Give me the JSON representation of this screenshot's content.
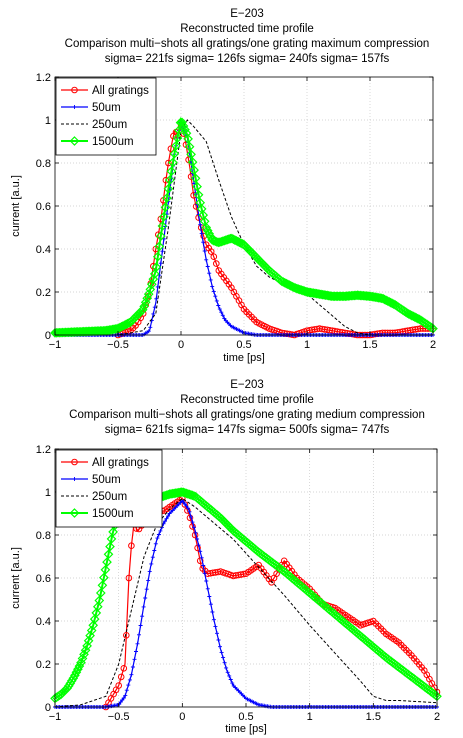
{
  "colors": {
    "all_gratings": "#ff0000",
    "um50": "#0000ff",
    "um250": "#000000",
    "um1500": "#00ff00",
    "grid": "#c8c8c8",
    "axes": "#000000",
    "background": "#ffffff"
  },
  "chart_data": [
    {
      "type": "line",
      "title": [
        "E−203",
        "Reconstructed time profile",
        "Comparison multi−shots all gratings/one grating maximum compression",
        "sigma= 221fs sigma= 126fs sigma= 240fs sigma= 157fs"
      ],
      "xlabel": "time [ps]",
      "ylabel": "current [a.u.]",
      "xlim": [
        -1,
        2
      ],
      "ylim": [
        0,
        1.2
      ],
      "xticks": [
        -1,
        -0.5,
        0,
        0.5,
        1,
        1.5,
        2
      ],
      "xtick_labels": [
        "−1",
        "−0.5",
        "0",
        "0.5",
        "1",
        "1.5",
        "2"
      ],
      "yticks": [
        0,
        0.2,
        0.4,
        0.6,
        0.8,
        1,
        1.2
      ],
      "ytick_labels": [
        "0",
        "0.2",
        "0.4",
        "0.6",
        "0.8",
        "1",
        "1.2"
      ],
      "grid": true,
      "legend_position": "top-left",
      "series": [
        {
          "name": "All gratings",
          "color": "#ff0000",
          "marker": "circle",
          "style": "solid",
          "x": [
            -0.5,
            -0.4,
            -0.35,
            -0.3,
            -0.25,
            -0.2,
            -0.17,
            -0.15,
            -0.12,
            -0.1,
            -0.07,
            -0.05,
            -0.02,
            0,
            0.03,
            0.07,
            0.1,
            0.15,
            0.2,
            0.25,
            0.3,
            0.35,
            0.4,
            0.45,
            0.5,
            0.6,
            0.7,
            0.8,
            0.9,
            1.0,
            1.1,
            1.2,
            1.3,
            1.4,
            1.5,
            1.6,
            1.7,
            1.8,
            1.9,
            2.0
          ],
          "y": [
            0,
            0.02,
            0.05,
            0.1,
            0.2,
            0.4,
            0.5,
            0.58,
            0.72,
            0.8,
            0.9,
            0.95,
            0.93,
            0.97,
            0.92,
            0.78,
            0.65,
            0.52,
            0.42,
            0.38,
            0.3,
            0.26,
            0.22,
            0.17,
            0.12,
            0.06,
            0.03,
            0.01,
            0.0,
            0.02,
            0.03,
            0.02,
            0.01,
            0.0,
            0.0,
            0.01,
            0.01,
            0.02,
            0.03,
            0.03
          ]
        },
        {
          "name": "50um",
          "color": "#0000ff",
          "marker": "plus",
          "style": "solid",
          "x": [
            -1,
            -0.5,
            -0.3,
            -0.25,
            -0.2,
            -0.15,
            -0.1,
            -0.05,
            0,
            0.05,
            0.1,
            0.15,
            0.2,
            0.25,
            0.3,
            0.35,
            0.4,
            0.5,
            0.6,
            0.7,
            0.8,
            1.0,
            1.5,
            2.0
          ],
          "y": [
            0,
            0,
            0.0,
            0.02,
            0.15,
            0.38,
            0.62,
            0.85,
            1.0,
            0.92,
            0.72,
            0.52,
            0.35,
            0.22,
            0.13,
            0.07,
            0.04,
            0.01,
            0,
            0,
            0,
            0,
            0,
            0
          ]
        },
        {
          "name": "250um",
          "color": "#000000",
          "marker": "none",
          "style": "dashed",
          "x": [
            -1,
            -0.5,
            -0.3,
            -0.2,
            -0.1,
            0,
            0.05,
            0.1,
            0.2,
            0.3,
            0.4,
            0.5,
            0.6,
            0.7,
            0.8,
            0.9,
            1.0,
            1.1,
            1.2,
            1.3,
            1.4,
            1.5,
            2.0
          ],
          "y": [
            0,
            0,
            0.02,
            0.1,
            0.5,
            0.95,
            1.0,
            0.97,
            0.9,
            0.72,
            0.55,
            0.42,
            0.32,
            0.27,
            0.24,
            0.22,
            0.19,
            0.14,
            0.09,
            0.04,
            0.01,
            0,
            0
          ]
        },
        {
          "name": "1500um",
          "color": "#00ff00",
          "marker": "diamond",
          "style": "solid",
          "x": [
            -1,
            -0.8,
            -0.6,
            -0.5,
            -0.4,
            -0.3,
            -0.25,
            -0.2,
            -0.15,
            -0.1,
            -0.05,
            0,
            0.05,
            0.1,
            0.15,
            0.2,
            0.25,
            0.3,
            0.4,
            0.5,
            0.6,
            0.7,
            0.8,
            0.9,
            1.0,
            1.1,
            1.2,
            1.3,
            1.4,
            1.5,
            1.6,
            1.7,
            1.8,
            1.9,
            2.0
          ],
          "y": [
            0.01,
            0.015,
            0.02,
            0.03,
            0.06,
            0.12,
            0.2,
            0.3,
            0.5,
            0.68,
            0.85,
            1.0,
            0.93,
            0.78,
            0.62,
            0.5,
            0.44,
            0.43,
            0.45,
            0.42,
            0.36,
            0.3,
            0.25,
            0.22,
            0.2,
            0.19,
            0.18,
            0.18,
            0.185,
            0.18,
            0.17,
            0.14,
            0.1,
            0.07,
            0.03
          ]
        }
      ]
    },
    {
      "type": "line",
      "title": [
        "E−203",
        "Reconstructed time profile",
        "Comparison multi−shots all gratings/one grating medium compression",
        "sigma= 621fs sigma= 147fs sigma= 500fs sigma= 747fs"
      ],
      "xlabel": "time [ps]",
      "ylabel": "current [a.u.]",
      "xlim": [
        -1,
        2
      ],
      "ylim": [
        0,
        1.2
      ],
      "xticks": [
        -1,
        -0.5,
        0,
        0.5,
        1,
        1.5,
        2
      ],
      "xtick_labels": [
        "−1",
        "−0.5",
        "0",
        "0.5",
        "1",
        "1.5",
        "2"
      ],
      "yticks": [
        0,
        0.2,
        0.4,
        0.6,
        0.8,
        1,
        1.2
      ],
      "ytick_labels": [
        "0",
        "0.2",
        "0.4",
        "0.6",
        "0.8",
        "1",
        "1.2"
      ],
      "grid": true,
      "legend_position": "top-left",
      "series": [
        {
          "name": "All gratings",
          "color": "#ff0000",
          "marker": "circle",
          "style": "solid",
          "x": [
            -0.6,
            -0.55,
            -0.5,
            -0.45,
            -0.42,
            -0.4,
            -0.38,
            -0.35,
            -0.3,
            -0.25,
            -0.2,
            -0.15,
            -0.1,
            -0.05,
            0,
            0.05,
            0.1,
            0.15,
            0.2,
            0.3,
            0.4,
            0.5,
            0.6,
            0.7,
            0.8,
            0.9,
            1.0,
            1.1,
            1.2,
            1.3,
            1.4,
            1.5,
            1.6,
            1.7,
            1.8,
            1.9,
            2.0
          ],
          "y": [
            0.0,
            0.05,
            0.1,
            0.2,
            0.6,
            0.75,
            0.85,
            0.82,
            0.86,
            0.9,
            0.92,
            0.91,
            0.93,
            0.95,
            0.97,
            0.9,
            0.8,
            0.65,
            0.62,
            0.63,
            0.61,
            0.62,
            0.66,
            0.58,
            0.68,
            0.6,
            0.55,
            0.48,
            0.46,
            0.42,
            0.38,
            0.4,
            0.34,
            0.3,
            0.24,
            0.17,
            0.07
          ]
        },
        {
          "name": "50um",
          "color": "#0000ff",
          "marker": "plus",
          "style": "solid",
          "x": [
            -1,
            -0.6,
            -0.5,
            -0.45,
            -0.4,
            -0.35,
            -0.3,
            -0.25,
            -0.2,
            -0.15,
            -0.1,
            -0.05,
            0,
            0.05,
            0.1,
            0.15,
            0.2,
            0.25,
            0.3,
            0.35,
            0.4,
            0.5,
            0.6,
            0.7,
            1.0,
            2.0
          ],
          "y": [
            0,
            0,
            0.01,
            0.05,
            0.15,
            0.3,
            0.48,
            0.65,
            0.78,
            0.85,
            0.9,
            0.93,
            0.96,
            0.92,
            0.82,
            0.7,
            0.55,
            0.4,
            0.27,
            0.17,
            0.1,
            0.04,
            0.01,
            0,
            0,
            0
          ]
        },
        {
          "name": "250um",
          "color": "#000000",
          "marker": "none",
          "style": "dashed",
          "x": [
            -1,
            -0.8,
            -0.6,
            -0.5,
            -0.4,
            -0.3,
            -0.2,
            -0.1,
            0,
            0.1,
            0.2,
            0.4,
            0.6,
            0.8,
            1.0,
            1.2,
            1.4,
            1.5,
            1.6,
            1.7,
            2.0
          ],
          "y": [
            0.0,
            0.01,
            0.05,
            0.2,
            0.45,
            0.7,
            0.85,
            0.92,
            0.97,
            0.93,
            0.88,
            0.78,
            0.65,
            0.52,
            0.38,
            0.25,
            0.12,
            0.05,
            0.03,
            0.03,
            0.02
          ]
        },
        {
          "name": "1500um",
          "color": "#00ff00",
          "marker": "diamond",
          "style": "solid",
          "x": [
            -1,
            -0.95,
            -0.9,
            -0.85,
            -0.8,
            -0.75,
            -0.7,
            -0.65,
            -0.6,
            -0.55,
            -0.5,
            -0.45,
            -0.4,
            -0.3,
            -0.2,
            -0.1,
            0,
            0.1,
            0.2,
            0.3,
            0.4,
            0.5,
            0.6,
            0.8,
            1.0,
            1.2,
            1.4,
            1.6,
            1.8,
            2.0
          ],
          "y": [
            0.04,
            0.06,
            0.09,
            0.14,
            0.2,
            0.28,
            0.38,
            0.5,
            0.65,
            0.8,
            0.92,
            0.94,
            0.95,
            0.96,
            0.97,
            0.99,
            1.0,
            0.98,
            0.93,
            0.88,
            0.82,
            0.77,
            0.72,
            0.63,
            0.53,
            0.43,
            0.33,
            0.23,
            0.14,
            0.05
          ]
        }
      ]
    }
  ]
}
